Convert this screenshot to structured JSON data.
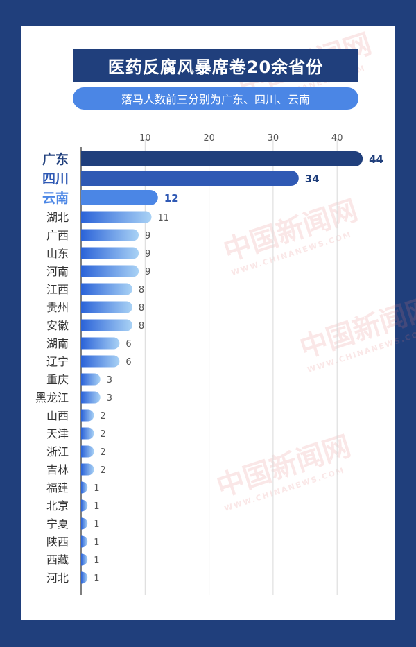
{
  "title": "医药反腐风暴席卷20余省份",
  "subtitle": "落马人数前三分别为广东、四川、云南",
  "watermark": {
    "cn": "中国新闻网",
    "en": "WWW.CHINANEWS.COM"
  },
  "colors": {
    "background": "#203f7c",
    "top1": "#203f7c",
    "top2": "#2f59b4",
    "top3": "#4b86e5",
    "gradient_start": "#2b63d8",
    "gradient_end": "#a9d2f5",
    "axis": "#555555",
    "grid": "#d8d8d8"
  },
  "chart_data": {
    "type": "bar",
    "orientation": "horizontal",
    "x_ticks": [
      10,
      20,
      30,
      40
    ],
    "xlim": [
      0,
      47
    ],
    "grid": true,
    "categories": [
      "广东",
      "四川",
      "云南",
      "湖北",
      "广西",
      "山东",
      "河南",
      "江西",
      "贵州",
      "安徽",
      "湖南",
      "辽宁",
      "重庆",
      "黑龙江",
      "山西",
      "天津",
      "浙江",
      "吉林",
      "福建",
      "北京",
      "宁夏",
      "陕西",
      "西藏",
      "河北"
    ],
    "values": [
      44,
      34,
      12,
      11,
      9,
      9,
      9,
      8,
      8,
      8,
      6,
      6,
      3,
      3,
      2,
      2,
      2,
      2,
      1,
      1,
      1,
      1,
      1,
      1
    ],
    "highlighted_top": 3
  }
}
